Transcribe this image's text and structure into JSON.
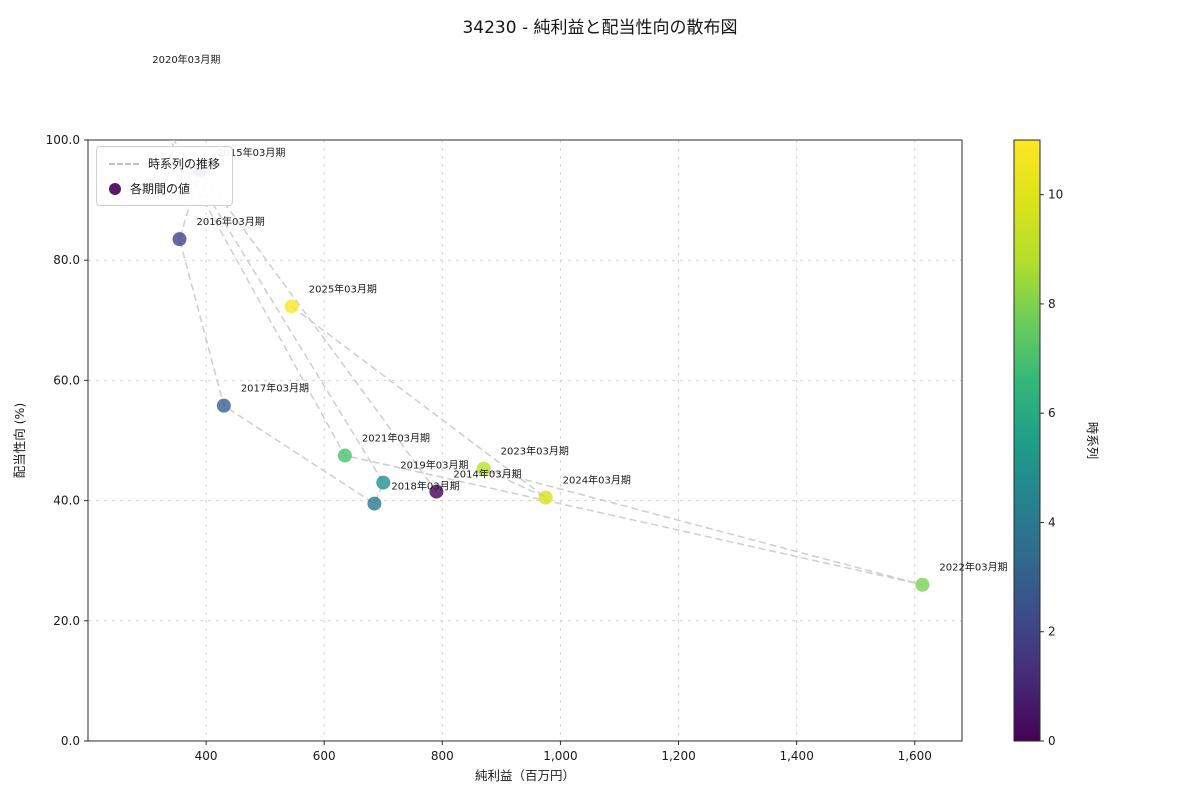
{
  "chart_data": {
    "type": "scatter",
    "title": "34230 - 純利益と配当性向の散布図",
    "xlabel": "純利益（百万円）",
    "ylabel": "配当性向 (%)",
    "xlim": [
      200,
      1680
    ],
    "ylim": [
      0,
      100
    ],
    "grid": true,
    "xticks": [
      400,
      600,
      800,
      1000,
      1200,
      1400,
      1600
    ],
    "xtick_labels": [
      "400",
      "600",
      "800",
      "1,000",
      "1,200",
      "1,400",
      "1,600"
    ],
    "yticks": [
      0,
      20,
      40,
      60,
      80,
      100
    ],
    "ytick_labels": [
      "0.0",
      "20.0",
      "40.0",
      "60.0",
      "80.0",
      "100.0"
    ],
    "legend": {
      "position": "upper left",
      "marker_color": "#440154",
      "items": [
        {
          "label": "時系列の推移",
          "type": "dashed-line"
        },
        {
          "label": "各期間の値",
          "type": "marker"
        }
      ]
    },
    "points": [
      {
        "label": "2014年03月期",
        "x": 790,
        "y": 41.5,
        "t": 0,
        "color": "#440154"
      },
      {
        "label": "2015年03月期",
        "x": 390,
        "y": 95.0,
        "t": 1,
        "color": "#482576"
      },
      {
        "label": "2016年03月期",
        "x": 355,
        "y": 83.5,
        "t": 2,
        "color": "#414287"
      },
      {
        "label": "2017年03月期",
        "x": 430,
        "y": 55.8,
        "t": 3,
        "color": "#35608d"
      },
      {
        "label": "2018年03月期",
        "x": 685,
        "y": 39.5,
        "t": 4,
        "color": "#2b788e"
      },
      {
        "label": "2019年03月期",
        "x": 700,
        "y": 43.0,
        "t": 5,
        "color": "#23908d"
      },
      {
        "label": "2020年03月期",
        "x": 280,
        "y": 110.5,
        "t": 6,
        "color": "#27ad81"
      },
      {
        "label": "2021年03月期",
        "x": 635,
        "y": 47.5,
        "t": 7,
        "color": "#47c06f"
      },
      {
        "label": "2022年03月期",
        "x": 1613,
        "y": 26.0,
        "t": 8,
        "color": "#7ad151"
      },
      {
        "label": "2023年03月期",
        "x": 870,
        "y": 45.3,
        "t": 9,
        "color": "#b8de29"
      },
      {
        "label": "2024年03月期",
        "x": 975,
        "y": 40.5,
        "t": 10,
        "color": "#d8e219"
      },
      {
        "label": "2025年03月期",
        "x": 545,
        "y": 72.3,
        "t": 11,
        "color": "#fde725"
      }
    ],
    "colorbar": {
      "label": "時系列",
      "min": 0,
      "max": 11,
      "ticks": [
        0,
        2,
        4,
        6,
        8,
        10
      ],
      "tick_labels": [
        "0",
        "2",
        "4",
        "6",
        "8",
        "10"
      ],
      "gradient": [
        "#440154",
        "#482878",
        "#3e4989",
        "#31688e",
        "#26828e",
        "#1f9e89",
        "#35b779",
        "#6dcd59",
        "#b4de2c",
        "#dce319",
        "#fde725"
      ]
    },
    "line_color": "#c6c6c6",
    "grid_color": "#d4d4d4"
  }
}
